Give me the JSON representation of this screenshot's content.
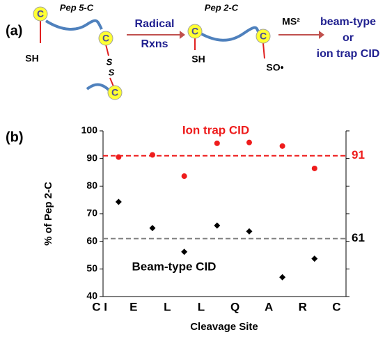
{
  "schematic": {
    "panel_label": "(a)",
    "pep5": "Pep 5-C",
    "c1": "C",
    "sh1": "SH",
    "c2": "C",
    "s1": "S",
    "s2": "S",
    "c3": "C",
    "radical": "Radical",
    "rxns": "Rxns",
    "pep2": "Pep 2-C",
    "c4": "C",
    "sh2": "SH",
    "c5": "C",
    "so": "SO•",
    "ms2": "MS²",
    "beam": "beam-type",
    "or": "or",
    "iontrap": "ion trap CID"
  },
  "chart_data": {
    "type": "scatter",
    "panel_label": "(b)",
    "ylabel": "% of Pep 2-C",
    "xlabel": "Cleavage Site",
    "xlim": [
      0.1,
      7.28
    ],
    "ylim": [
      40,
      100
    ],
    "yticks": [
      40,
      50,
      60,
      70,
      80,
      90,
      100
    ],
    "xticks": [
      {
        "value": 0,
        "label": "C I"
      },
      {
        "value": 1,
        "label": "E"
      },
      {
        "value": 2,
        "label": "L"
      },
      {
        "value": 3,
        "label": "L"
      },
      {
        "value": 4,
        "label": "Q"
      },
      {
        "value": 5,
        "label": "A"
      },
      {
        "value": 6,
        "label": "R"
      },
      {
        "value": 7,
        "label": "C"
      }
    ],
    "series": [
      {
        "name": "Ion trap CID",
        "color": "#ee1c1c",
        "marker": "circle",
        "x": [
          0.56,
          1.56,
          2.5,
          3.47,
          4.42,
          5.4,
          6.35
        ],
        "values": [
          90.5,
          91.3,
          83.6,
          95.5,
          95.8,
          94.5,
          86.4
        ]
      },
      {
        "name": "Beam-type CID",
        "color": "#000000",
        "marker": "diamond",
        "x": [
          0.56,
          1.56,
          2.5,
          3.47,
          4.42,
          5.4,
          6.35
        ],
        "values": [
          74.3,
          64.8,
          56.2,
          65.7,
          63.6,
          47.0,
          53.7
        ]
      }
    ],
    "reference_lines": [
      {
        "value": 91,
        "color": "#ee1c1c"
      },
      {
        "value": 61,
        "color": "#808080"
      }
    ]
  }
}
